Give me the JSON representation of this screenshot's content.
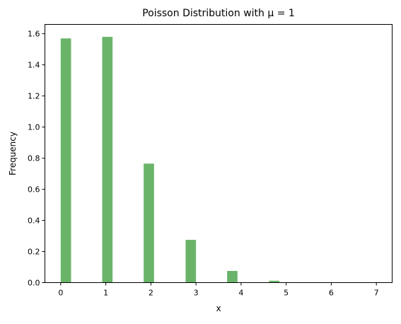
{
  "chart_data": {
    "type": "bar",
    "title": "Poisson Distribution with μ = 1",
    "xlabel": "x",
    "ylabel": "Frequency",
    "xlim": [
      -0.35,
      7.35
    ],
    "ylim": [
      0,
      1.66
    ],
    "xticks": [
      0,
      1,
      2,
      3,
      4,
      5,
      6,
      7
    ],
    "yticks": [
      0.0,
      0.2,
      0.4,
      0.6,
      0.8,
      1.0,
      1.2,
      1.4,
      1.6
    ],
    "ytick_labels": [
      "0.0",
      "0.2",
      "0.4",
      "0.6",
      "0.8",
      "1.0",
      "1.2",
      "1.4",
      "1.6"
    ],
    "bin_width": 0.23,
    "bins_left": [
      0.0,
      0.92,
      1.84,
      2.77,
      3.69,
      4.62,
      5.54,
      6.46
    ],
    "values": [
      1.57,
      1.58,
      0.765,
      0.275,
      0.075,
      0.012,
      0.002,
      0.0
    ],
    "bar_color": "#6ab46a",
    "grid": false,
    "legend": "none"
  }
}
